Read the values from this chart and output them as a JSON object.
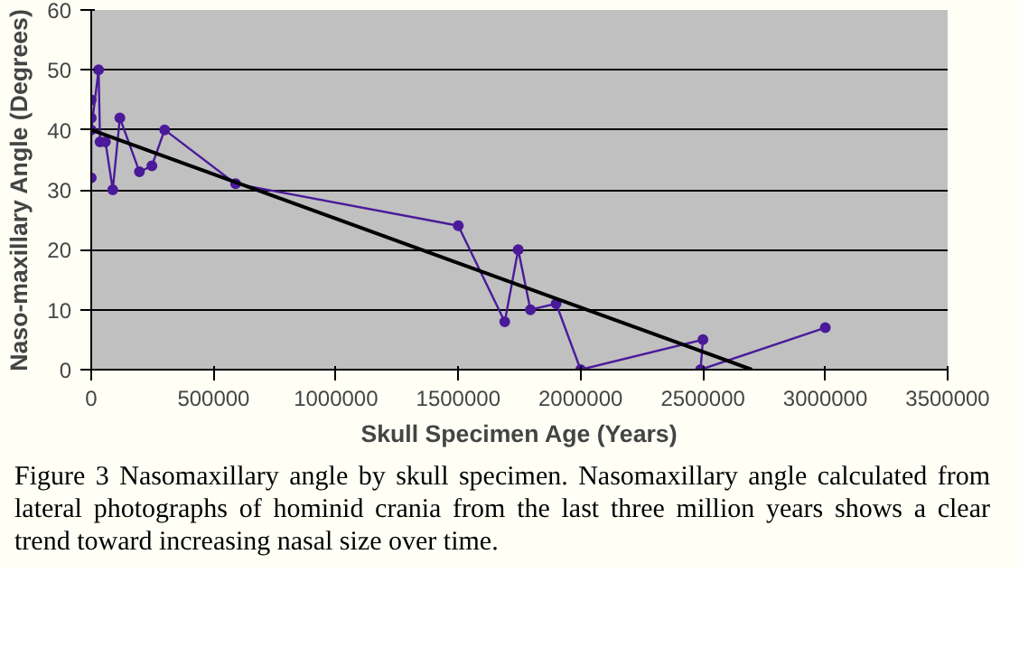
{
  "chart_data": {
    "type": "line",
    "xlabel": "Skull Specimen Age (Years)",
    "ylabel": "Naso-maxillary Angle (Degrees)",
    "xlim": [
      0,
      3500000
    ],
    "xticks": [
      0,
      500000,
      1000000,
      1500000,
      2000000,
      2500000,
      3000000,
      3500000
    ],
    "ylim": [
      0,
      60
    ],
    "yticks": [
      0,
      10,
      20,
      30,
      40,
      50,
      60
    ],
    "grid": "y",
    "marker": "circle",
    "line_style": "solid",
    "series": [
      {
        "color": "#4b1a9a",
        "x": [
          0,
          0,
          0,
          0,
          30000,
          36000,
          58000,
          88000,
          117000,
          197000,
          248000,
          300000,
          590000,
          1500000,
          1690000,
          1745000,
          1795000,
          1900000,
          2000000,
          2500000,
          2490000,
          3000000
        ],
        "values": [
          32,
          45,
          42,
          40,
          50,
          38,
          38,
          30,
          42,
          33,
          34,
          40,
          31,
          24,
          8,
          20,
          10,
          11,
          0,
          5,
          0,
          7
        ]
      },
      {
        "color": "#000000",
        "marker": "none",
        "x": [
          0,
          2700000
        ],
        "values": [
          40,
          0
        ]
      }
    ],
    "annotations": [
      "Figure 3    Nasomaxillary angle by skull specimen. Nasomaxillary angle calculated from lateral photographs of hominid crania from the last three million years shows a clear trend toward increasing nasal size over time."
    ]
  }
}
